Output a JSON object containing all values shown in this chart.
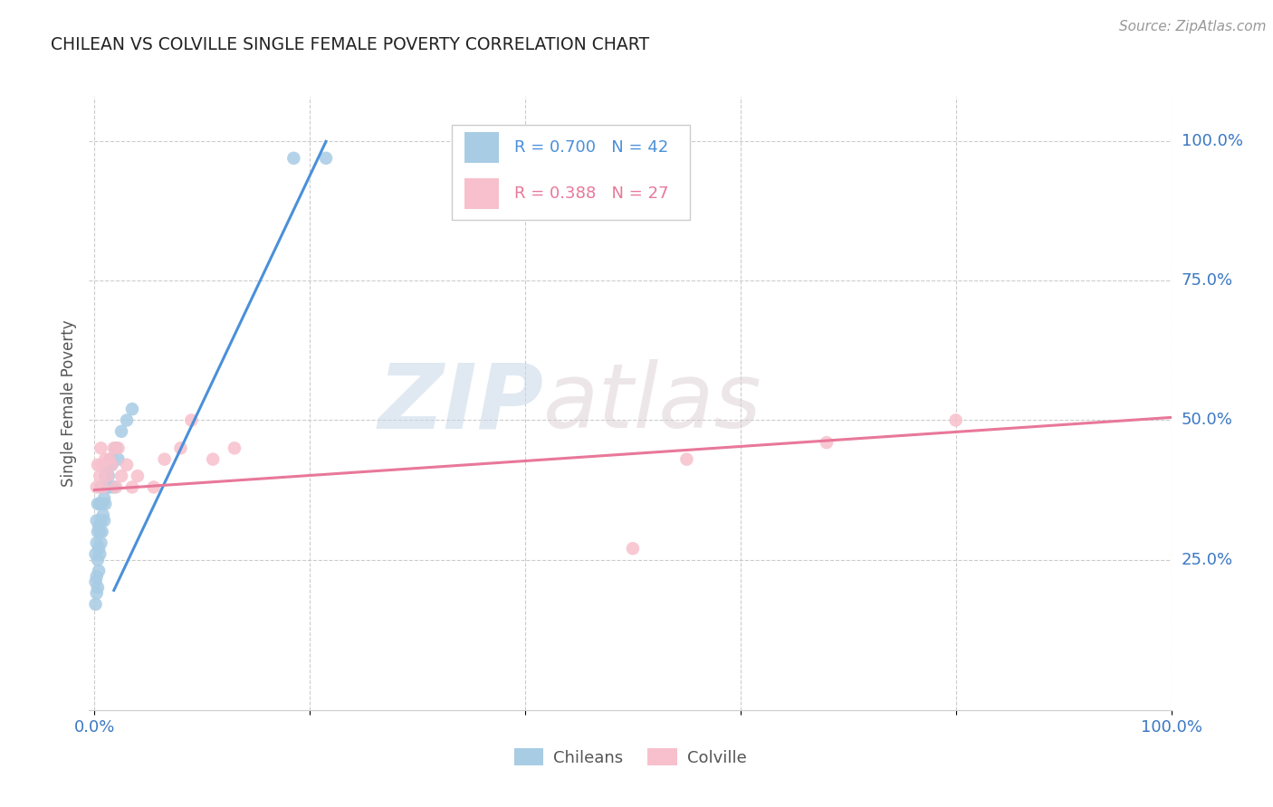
{
  "title": "CHILEAN VS COLVILLE SINGLE FEMALE POVERTY CORRELATION CHART",
  "source": "Source: ZipAtlas.com",
  "ylabel": "Single Female Poverty",
  "legend_blue_r": "R = 0.700",
  "legend_blue_n": "N = 42",
  "legend_pink_r": "R = 0.388",
  "legend_pink_n": "N = 27",
  "legend_label_blue": "Chileans",
  "legend_label_pink": "Colville",
  "blue_color": "#a8cce4",
  "pink_color": "#f7c0cc",
  "blue_line_color": "#4a90d9",
  "pink_line_color": "#e8789a",
  "blue_r_color": "#4a90d9",
  "pink_r_color": "#e8789a",
  "n_color": "#1a1a2e",
  "blue_scatter_x": [
    0.001,
    0.001,
    0.001,
    0.002,
    0.002,
    0.002,
    0.002,
    0.003,
    0.003,
    0.003,
    0.003,
    0.004,
    0.004,
    0.004,
    0.005,
    0.005,
    0.005,
    0.006,
    0.006,
    0.006,
    0.007,
    0.007,
    0.008,
    0.008,
    0.009,
    0.009,
    0.01,
    0.01,
    0.011,
    0.012,
    0.013,
    0.014,
    0.015,
    0.016,
    0.018,
    0.02,
    0.022,
    0.025,
    0.03,
    0.035,
    0.185,
    0.215
  ],
  "blue_scatter_y": [
    0.17,
    0.21,
    0.26,
    0.19,
    0.22,
    0.28,
    0.32,
    0.2,
    0.25,
    0.3,
    0.35,
    0.23,
    0.27,
    0.31,
    0.26,
    0.3,
    0.35,
    0.28,
    0.32,
    0.38,
    0.3,
    0.35,
    0.33,
    0.38,
    0.32,
    0.36,
    0.35,
    0.4,
    0.38,
    0.42,
    0.4,
    0.38,
    0.43,
    0.42,
    0.38,
    0.45,
    0.43,
    0.48,
    0.5,
    0.52,
    0.97,
    0.97
  ],
  "pink_scatter_x": [
    0.002,
    0.003,
    0.005,
    0.006,
    0.007,
    0.008,
    0.01,
    0.012,
    0.014,
    0.016,
    0.018,
    0.02,
    0.022,
    0.025,
    0.03,
    0.035,
    0.04,
    0.055,
    0.065,
    0.08,
    0.09,
    0.11,
    0.13,
    0.5,
    0.55,
    0.68,
    0.8
  ],
  "pink_scatter_y": [
    0.38,
    0.42,
    0.4,
    0.45,
    0.42,
    0.38,
    0.43,
    0.4,
    0.43,
    0.42,
    0.45,
    0.38,
    0.45,
    0.4,
    0.42,
    0.38,
    0.4,
    0.38,
    0.43,
    0.45,
    0.5,
    0.43,
    0.45,
    0.27,
    0.43,
    0.46,
    0.5
  ],
  "blue_line_x": [
    0.018,
    0.215
  ],
  "blue_line_y": [
    0.195,
    1.0
  ],
  "pink_line_x": [
    0.0,
    1.0
  ],
  "pink_line_y": [
    0.375,
    0.505
  ],
  "xlim": [
    -0.005,
    1.0
  ],
  "ylim": [
    -0.02,
    1.08
  ],
  "ytick_positions": [
    0.25,
    0.5,
    0.75,
    1.0
  ],
  "ytick_labels": [
    "25.0%",
    "50.0%",
    "75.0%",
    "100.0%"
  ],
  "watermark_zip": "ZIP",
  "watermark_atlas": "atlas",
  "background_color": "#ffffff",
  "grid_color": "#cccccc",
  "spine_color": "#cccccc"
}
